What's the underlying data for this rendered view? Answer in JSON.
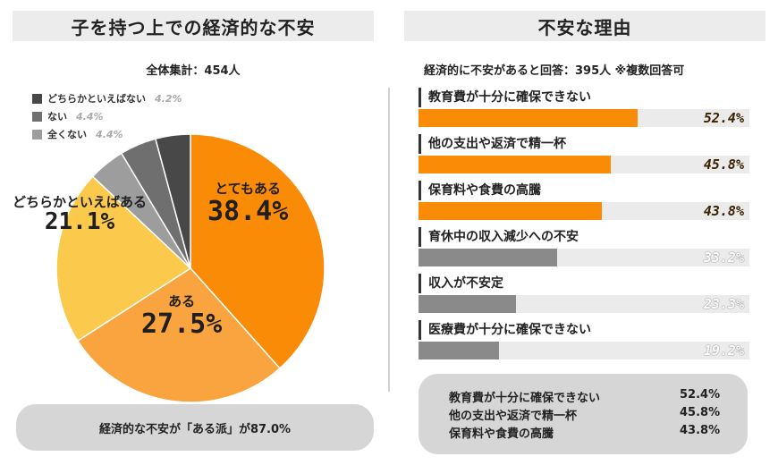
{
  "left": {
    "title": "子を持つ上での経済的な不安",
    "total": "全体集計：454人",
    "summary": "経済的な不安が「ある派」が87.0%"
  },
  "right": {
    "title": "不安な理由",
    "subtitle": "経済的に不安があると回答：395人 ※複数回答可",
    "summary_rows": [
      {
        "label": "教育費が十分に確保できない",
        "value": "52.4%"
      },
      {
        "label": "他の支出や返済で精一杯",
        "value": "45.8%"
      },
      {
        "label": "保育料や食費の高騰",
        "value": "43.8%"
      }
    ]
  },
  "chart_data": [
    {
      "type": "pie",
      "title": "子を持つ上での経済的な不安",
      "labels": [
        "とてもある",
        "ある",
        "どちらかといえばある",
        "全くない",
        "ない",
        "どちらかといえばない"
      ],
      "values": [
        38.4,
        27.5,
        21.1,
        4.4,
        4.4,
        4.2
      ],
      "display": [
        "38.4%",
        "27.5%",
        "21.1%",
        "4.4%",
        "4.4%",
        "4.2%"
      ],
      "colors": [
        "#f98b07",
        "#f9a43f",
        "#fbc94b",
        "#9d9d9d",
        "#6f6f6f",
        "#484848"
      ],
      "legend": [
        "どちらかといえばない",
        "ない",
        "全くない"
      ],
      "legend_placement": "top-left"
    },
    {
      "type": "bar",
      "orientation": "horizontal",
      "title": "不安な理由",
      "categories": [
        "教育費が十分に確保できない",
        "他の支出や返済で精一杯",
        "保育料や食費の高騰",
        "育休中の収入減少への不安",
        "収入が不安定",
        "医療費が十分に確保できない"
      ],
      "values": [
        52.4,
        45.8,
        43.8,
        33.2,
        23.3,
        19.2
      ],
      "display": [
        "52.4%",
        "45.8%",
        "43.8%",
        "33.2%",
        "23.3%",
        "19.2%"
      ],
      "colors": [
        "#f98b07",
        "#f98b07",
        "#f98b07",
        "#8a8a8a",
        "#8a8a8a",
        "#8a8a8a"
      ],
      "xlim": [
        0,
        100
      ]
    }
  ]
}
